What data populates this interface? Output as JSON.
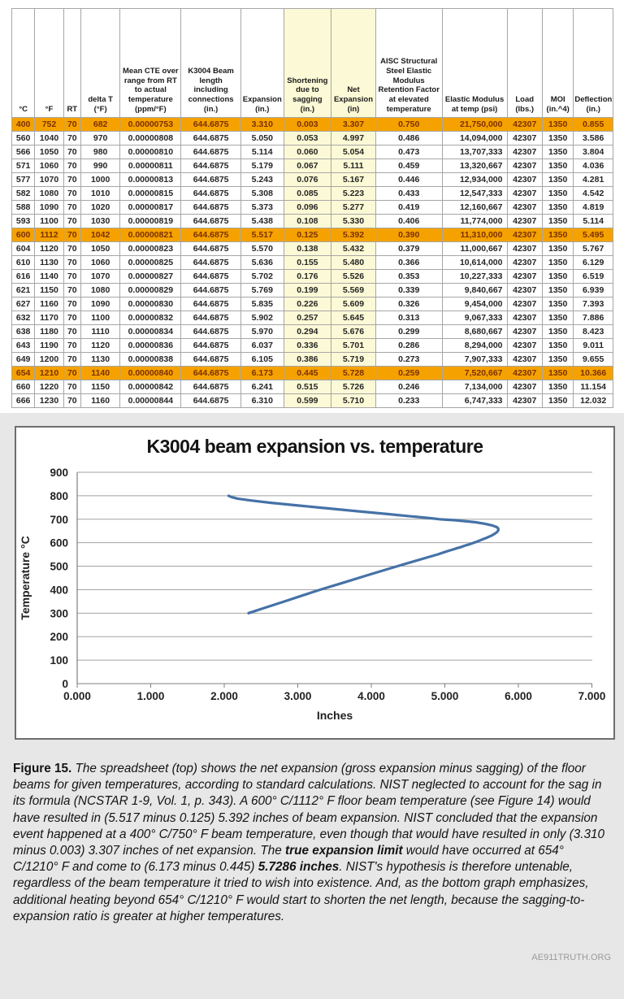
{
  "colors": {
    "highlight_orange": "#F5A200",
    "highlight_text": "#7B3000",
    "column_yellow": "#FCFAD6",
    "curve_blue": "#4572A7",
    "gridline_gray": "#A3A3A3"
  },
  "table": {
    "headers": [
      "°C",
      "°F",
      "RT",
      "delta T (°F)",
      "Mean CTE over range from RT to actual temperature (ppm/°F)",
      "K3004 Beam length including connections (in.)",
      "Expansion (in.)",
      "Shortening due to sagging (in.)",
      "Net Expansion (in)",
      "AISC Structural Steel Elastic Modulus Retention Factor at elevated temperature",
      "Elastic Modulus at temp (psi)",
      "Load (lbs.)",
      "MOI (in.^4)",
      "Deflection (in.)"
    ],
    "yellow_columns": [
      7,
      8
    ],
    "highlight_rows": [
      0,
      8,
      18
    ],
    "rows": [
      [
        "400",
        "752",
        "70",
        "682",
        "0.00000753",
        "644.6875",
        "3.310",
        "0.003",
        "3.307",
        "0.750",
        "21,750,000",
        "42307",
        "1350",
        "0.855"
      ],
      [
        "560",
        "1040",
        "70",
        "970",
        "0.00000808",
        "644.6875",
        "5.050",
        "0.053",
        "4.997",
        "0.486",
        "14,094,000",
        "42307",
        "1350",
        "3.586"
      ],
      [
        "566",
        "1050",
        "70",
        "980",
        "0.00000810",
        "644.6875",
        "5.114",
        "0.060",
        "5.054",
        "0.473",
        "13,707,333",
        "42307",
        "1350",
        "3.804"
      ],
      [
        "571",
        "1060",
        "70",
        "990",
        "0.00000811",
        "644.6875",
        "5.179",
        "0.067",
        "5.111",
        "0.459",
        "13,320,667",
        "42307",
        "1350",
        "4.036"
      ],
      [
        "577",
        "1070",
        "70",
        "1000",
        "0.00000813",
        "644.6875",
        "5.243",
        "0.076",
        "5.167",
        "0.446",
        "12,934,000",
        "42307",
        "1350",
        "4.281"
      ],
      [
        "582",
        "1080",
        "70",
        "1010",
        "0.00000815",
        "644.6875",
        "5.308",
        "0.085",
        "5.223",
        "0.433",
        "12,547,333",
        "42307",
        "1350",
        "4.542"
      ],
      [
        "588",
        "1090",
        "70",
        "1020",
        "0.00000817",
        "644.6875",
        "5.373",
        "0.096",
        "5.277",
        "0.419",
        "12,160,667",
        "42307",
        "1350",
        "4.819"
      ],
      [
        "593",
        "1100",
        "70",
        "1030",
        "0.00000819",
        "644.6875",
        "5.438",
        "0.108",
        "5.330",
        "0.406",
        "11,774,000",
        "42307",
        "1350",
        "5.114"
      ],
      [
        "600",
        "1112",
        "70",
        "1042",
        "0.00000821",
        "644.6875",
        "5.517",
        "0.125",
        "5.392",
        "0.390",
        "11,310,000",
        "42307",
        "1350",
        "5.495"
      ],
      [
        "604",
        "1120",
        "70",
        "1050",
        "0.00000823",
        "644.6875",
        "5.570",
        "0.138",
        "5.432",
        "0.379",
        "11,000,667",
        "42307",
        "1350",
        "5.767"
      ],
      [
        "610",
        "1130",
        "70",
        "1060",
        "0.00000825",
        "644.6875",
        "5.636",
        "0.155",
        "5.480",
        "0.366",
        "10,614,000",
        "42307",
        "1350",
        "6.129"
      ],
      [
        "616",
        "1140",
        "70",
        "1070",
        "0.00000827",
        "644.6875",
        "5.702",
        "0.176",
        "5.526",
        "0.353",
        "10,227,333",
        "42307",
        "1350",
        "6.519"
      ],
      [
        "621",
        "1150",
        "70",
        "1080",
        "0.00000829",
        "644.6875",
        "5.769",
        "0.199",
        "5.569",
        "0.339",
        "9,840,667",
        "42307",
        "1350",
        "6.939"
      ],
      [
        "627",
        "1160",
        "70",
        "1090",
        "0.00000830",
        "644.6875",
        "5.835",
        "0.226",
        "5.609",
        "0.326",
        "9,454,000",
        "42307",
        "1350",
        "7.393"
      ],
      [
        "632",
        "1170",
        "70",
        "1100",
        "0.00000832",
        "644.6875",
        "5.902",
        "0.257",
        "5.645",
        "0.313",
        "9,067,333",
        "42307",
        "1350",
        "7.886"
      ],
      [
        "638",
        "1180",
        "70",
        "1110",
        "0.00000834",
        "644.6875",
        "5.970",
        "0.294",
        "5.676",
        "0.299",
        "8,680,667",
        "42307",
        "1350",
        "8.423"
      ],
      [
        "643",
        "1190",
        "70",
        "1120",
        "0.00000836",
        "644.6875",
        "6.037",
        "0.336",
        "5.701",
        "0.286",
        "8,294,000",
        "42307",
        "1350",
        "9.011"
      ],
      [
        "649",
        "1200",
        "70",
        "1130",
        "0.00000838",
        "644.6875",
        "6.105",
        "0.386",
        "5.719",
        "0.273",
        "7,907,333",
        "42307",
        "1350",
        "9.655"
      ],
      [
        "654",
        "1210",
        "70",
        "1140",
        "0.00000840",
        "644.6875",
        "6.173",
        "0.445",
        "5.728",
        "0.259",
        "7,520,667",
        "42307",
        "1350",
        "10.366"
      ],
      [
        "660",
        "1220",
        "70",
        "1150",
        "0.00000842",
        "644.6875",
        "6.241",
        "0.515",
        "5.726",
        "0.246",
        "7,134,000",
        "42307",
        "1350",
        "11.154"
      ],
      [
        "666",
        "1230",
        "70",
        "1160",
        "0.00000844",
        "644.6875",
        "6.310",
        "0.599",
        "5.710",
        "0.233",
        "6,747,333",
        "42307",
        "1350",
        "12.032"
      ]
    ]
  },
  "chart_data": {
    "type": "line",
    "title": "K3004 beam expansion vs. temperature",
    "xlabel": "Inches",
    "ylabel": "Temperature °C",
    "xlim": [
      0,
      7
    ],
    "ylim": [
      0,
      900
    ],
    "grid": "horizontal",
    "x_ticks": [
      0,
      1,
      2,
      3,
      4,
      5,
      6,
      7
    ],
    "x_tick_labels": [
      "0.000",
      "1.000",
      "2.000",
      "3.000",
      "4.000",
      "5.000",
      "6.000",
      "7.000"
    ],
    "y_ticks": [
      0,
      100,
      200,
      300,
      400,
      500,
      600,
      700,
      800,
      900
    ],
    "series": [
      {
        "name": "Net expansion (in) vs Temperature (°C)",
        "points": [
          [
            2.33,
            300
          ],
          [
            2.52,
            320
          ],
          [
            2.82,
            350
          ],
          [
            3.06,
            375
          ],
          [
            3.307,
            400
          ],
          [
            3.62,
            430
          ],
          [
            3.93,
            460
          ],
          [
            4.25,
            490
          ],
          [
            4.57,
            520
          ],
          [
            4.79,
            540
          ],
          [
            4.9,
            550
          ],
          [
            4.997,
            560
          ],
          [
            5.054,
            566
          ],
          [
            5.111,
            571
          ],
          [
            5.167,
            577
          ],
          [
            5.223,
            582
          ],
          [
            5.277,
            588
          ],
          [
            5.33,
            593
          ],
          [
            5.392,
            600
          ],
          [
            5.432,
            604
          ],
          [
            5.48,
            610
          ],
          [
            5.526,
            616
          ],
          [
            5.569,
            621
          ],
          [
            5.609,
            627
          ],
          [
            5.645,
            632
          ],
          [
            5.676,
            638
          ],
          [
            5.701,
            643
          ],
          [
            5.719,
            649
          ],
          [
            5.728,
            654
          ],
          [
            5.726,
            660
          ],
          [
            5.71,
            666
          ],
          [
            5.64,
            674
          ],
          [
            5.54,
            681
          ],
          [
            5.42,
            687
          ],
          [
            5.27,
            692
          ],
          [
            5.12,
            696
          ],
          [
            4.98,
            699
          ],
          [
            4.93,
            700
          ],
          [
            4.82,
            704
          ],
          [
            4.55,
            712
          ],
          [
            4.22,
            722
          ],
          [
            3.82,
            734
          ],
          [
            3.42,
            746
          ],
          [
            3.02,
            758
          ],
          [
            2.64,
            770
          ],
          [
            2.36,
            780
          ],
          [
            2.18,
            788
          ],
          [
            2.1,
            794
          ],
          [
            2.06,
            800
          ]
        ]
      }
    ]
  },
  "caption": {
    "segments": [
      {
        "text": "Figure 15. ",
        "bold": true,
        "italic": false
      },
      {
        "text": "The spreadsheet (top) shows the net expansion (gross expansion minus sagging) of the floor beams for given temperatures, according to standard calculations. NIST neglected to account for the sag in its formula (NCSTAR 1-9, Vol. 1, p. 343). A 600° C/1112° F floor beam temperature (see Figure 14) would have resulted in (5.517 minus 0.125) 5.392 inches of beam expansion. NIST concluded that the expansion event happened at a 400° C/750° F beam temperature, even though that would have resulted in only (3.310 minus 0.003) 3.307 inches of net expansion. The ",
        "bold": false,
        "italic": true
      },
      {
        "text": "true expansion limit",
        "bold": true,
        "italic": true
      },
      {
        "text": " would have occurred at 654° C/1210° F and come to (6.173 minus 0.445) ",
        "bold": false,
        "italic": true
      },
      {
        "text": "5.7286 inches",
        "bold": true,
        "italic": true
      },
      {
        "text": ". NIST's hypothesis is therefore untenable, regardless of the beam temperature it tried to wish into existence. And, as the bottom graph emphasizes, additional heating beyond 654° C/1210° F would start to shorten the net length, because the sagging-to-expansion ratio is greater at higher temperatures.",
        "bold": false,
        "italic": true
      }
    ]
  },
  "footer": {
    "text": "AE911TRUTH.ORG"
  }
}
